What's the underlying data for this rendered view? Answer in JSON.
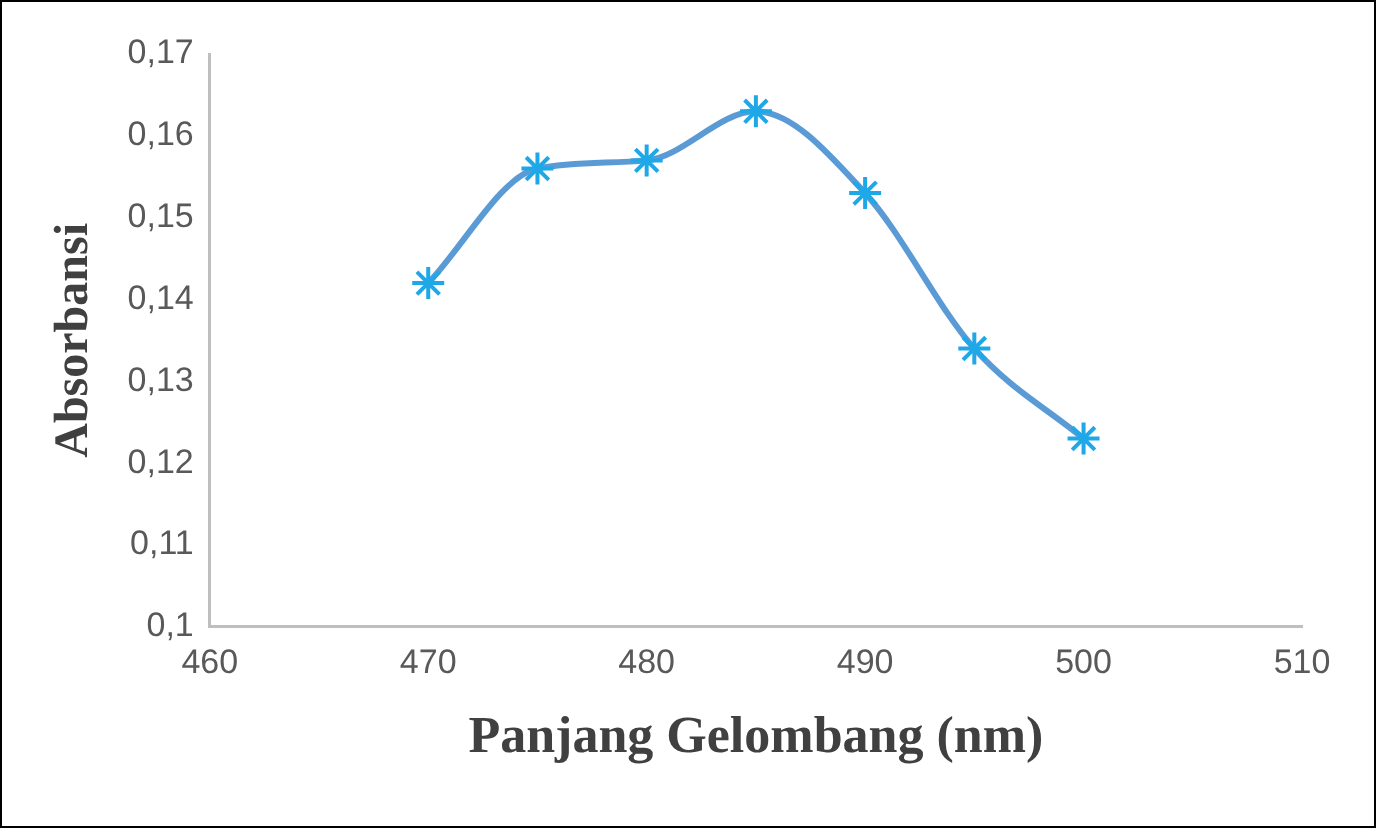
{
  "chart_data": {
    "type": "line",
    "xlabel": "Panjang Gelombang (nm)",
    "ylabel": "Absorbansi",
    "x": [
      470,
      475,
      480,
      485,
      490,
      495,
      500
    ],
    "series": [
      {
        "color": "#5b9bd5",
        "values": [
          0.142,
          0.156,
          0.157,
          0.163,
          0.153,
          0.134,
          0.123
        ]
      }
    ],
    "xlim": [
      460,
      510
    ],
    "xticks": [
      460,
      470,
      480,
      490,
      500,
      510
    ],
    "ylim": [
      0.1,
      0.17
    ],
    "yticks": [
      {
        "value": 0.1,
        "label": "0,1"
      },
      {
        "value": 0.11,
        "label": "0,11"
      },
      {
        "value": 0.12,
        "label": "0,12"
      },
      {
        "value": 0.13,
        "label": "0,13"
      },
      {
        "value": 0.14,
        "label": "0,14"
      },
      {
        "value": 0.15,
        "label": "0,15"
      },
      {
        "value": 0.16,
        "label": "0,16"
      },
      {
        "value": 0.17,
        "label": "0,17"
      }
    ],
    "grid": false,
    "legend": false,
    "marker": "cross",
    "line_style": "solid"
  }
}
